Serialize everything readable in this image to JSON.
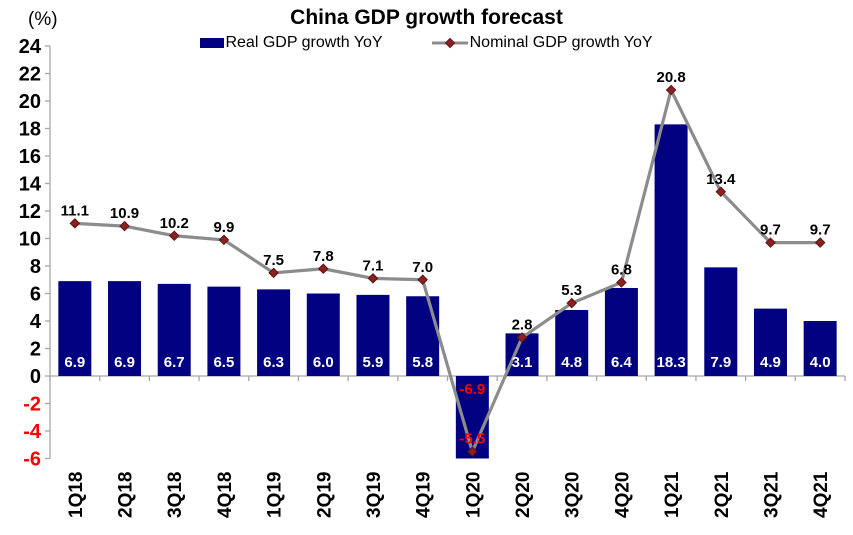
{
  "chart_data": {
    "type": "combo_bar_line",
    "title": "China GDP growth forecast",
    "y_unit": "(%)",
    "categories": [
      "1Q18",
      "2Q18",
      "3Q18",
      "4Q18",
      "1Q19",
      "2Q19",
      "3Q19",
      "4Q19",
      "1Q20",
      "2Q20",
      "3Q20",
      "4Q20",
      "1Q21",
      "2Q21",
      "3Q21",
      "4Q21"
    ],
    "series": [
      {
        "name": "Real GDP growth YoY",
        "kind": "bar",
        "color": "#000080",
        "values": [
          6.9,
          6.9,
          6.7,
          6.5,
          6.3,
          6.0,
          5.9,
          5.8,
          -6.9,
          3.1,
          4.8,
          6.4,
          18.3,
          7.9,
          4.9,
          4.0
        ]
      },
      {
        "name": "Nominal GDP growth YoY",
        "kind": "line",
        "color": "#8C8C8C",
        "marker_color": "#8B2020",
        "marker_edge_color": "#5E1414",
        "values": [
          11.1,
          10.9,
          10.2,
          9.9,
          7.5,
          7.8,
          7.1,
          7.0,
          -5.5,
          2.8,
          5.3,
          6.8,
          20.8,
          13.4,
          9.7,
          9.7
        ]
      }
    ],
    "ylim": [
      -6,
      24
    ],
    "ytick_step": 2,
    "grid": false,
    "legend_position": "top-center",
    "axis_color": "#A6A6A6",
    "tick_label_color": "#000000",
    "negative_color": "#FF0000",
    "bar_label_color": "#FFFFFF",
    "line_label_color": "#000000"
  }
}
